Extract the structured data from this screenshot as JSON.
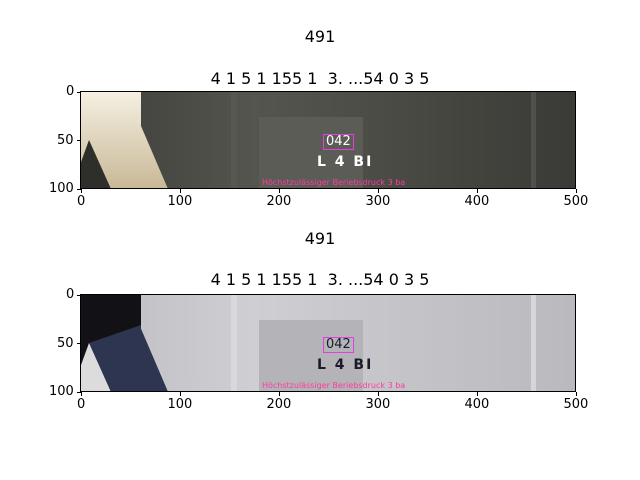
{
  "chart_data": [
    {
      "type": "image",
      "suptitle": "491",
      "title": "4 1 5 1 155 1  3. ...54 0 3 5",
      "xlim": [
        0,
        500
      ],
      "ylim": [
        100,
        0
      ],
      "xticks": [
        "0",
        "100",
        "200",
        "300",
        "400",
        "500"
      ],
      "yticks": [
        "0",
        "50",
        "100"
      ],
      "stamp_code": "042",
      "stamp_sub": "L 4 BI",
      "stamp_text": "Höchstzulässiger Beriebsdruck 3 ba",
      "palette": {
        "bg": "#4a4a44",
        "left": "#e8dcc0",
        "plate": "#5a5a55",
        "text": "#ffffff"
      }
    },
    {
      "type": "image",
      "suptitle": "491",
      "title": "4 1 5 1 155 1  3. ...54 0 3 5",
      "xlim": [
        0,
        500
      ],
      "ylim": [
        100,
        0
      ],
      "xticks": [
        "0",
        "100",
        "200",
        "300",
        "400",
        "500"
      ],
      "yticks": [
        "0",
        "50",
        "100"
      ],
      "stamp_code": "042",
      "stamp_sub": "L 4 BI",
      "stamp_text": "Höchstzulässiger Beriebsdruck 3 ba",
      "palette": {
        "bg": "#c8c8cc",
        "left": "#1a1a1a",
        "plate": "#b8b8bc",
        "text": "#1a1a2a"
      }
    }
  ]
}
